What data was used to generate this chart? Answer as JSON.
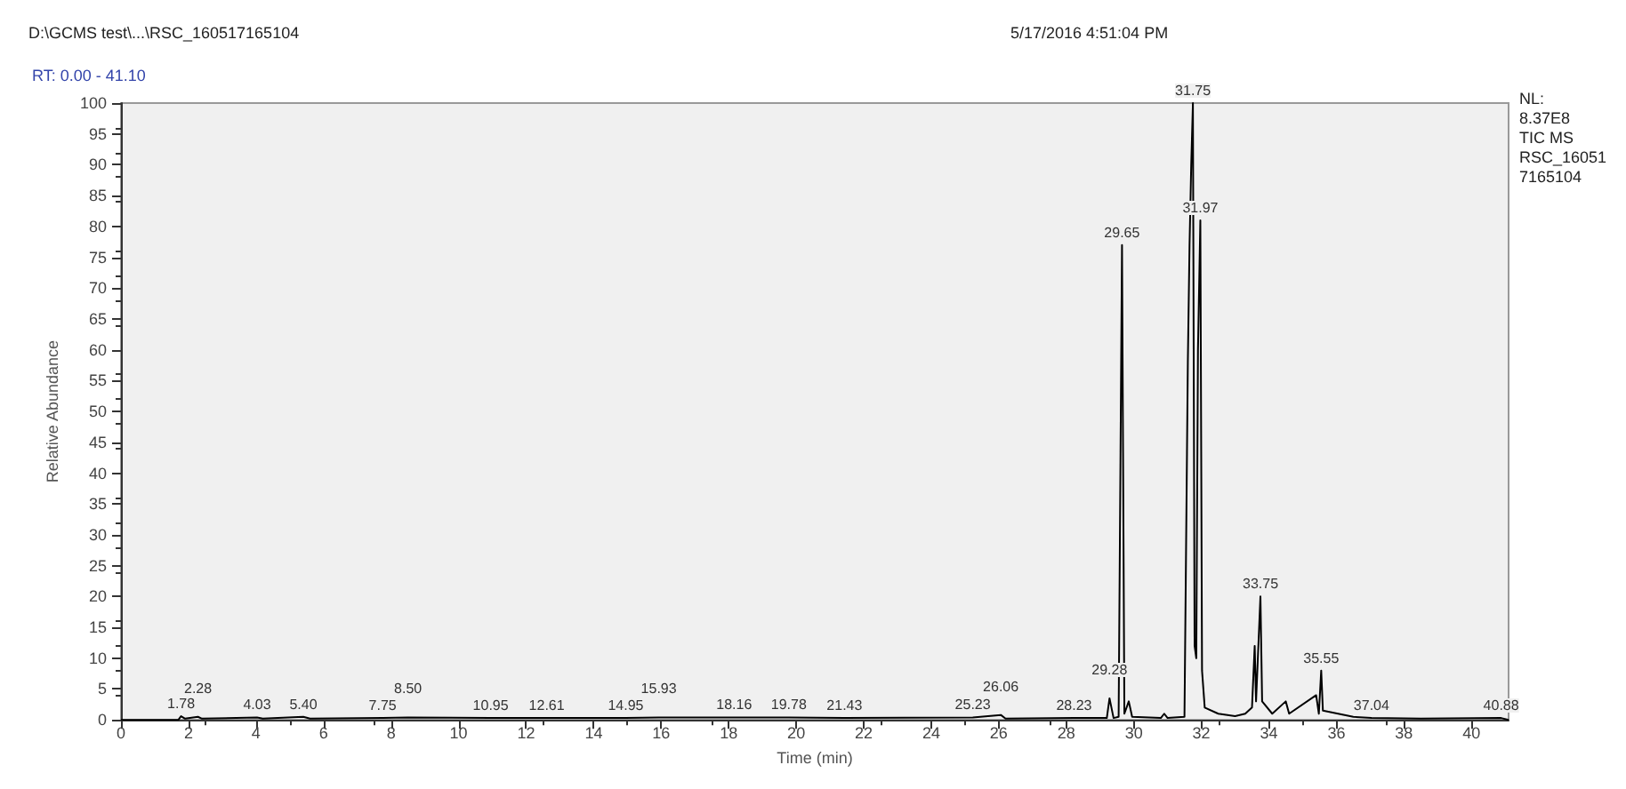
{
  "chart_data": {
    "type": "line",
    "xlabel": "Time (min)",
    "ylabel": "Relative Abundance",
    "xlim": [
      0,
      41.1
    ],
    "xticks": [
      0,
      2,
      4,
      6,
      8,
      10,
      12,
      14,
      16,
      18,
      20,
      22,
      24,
      26,
      28,
      30,
      32,
      34,
      36,
      38,
      40
    ],
    "ylim": [
      0,
      100
    ],
    "yticks": [
      0,
      5,
      10,
      15,
      20,
      25,
      30,
      35,
      40,
      45,
      50,
      55,
      60,
      65,
      70,
      75,
      80,
      85,
      90,
      95,
      100
    ],
    "grid": false,
    "marker": "none",
    "line_style": "solid",
    "series": [
      {
        "color": "#000000",
        "x": [
          0,
          1.7,
          1.78,
          1.9,
          2.28,
          2.4,
          4.03,
          4.2,
          5.4,
          5.6,
          7.75,
          8.5,
          10.95,
          12.61,
          14.95,
          15.93,
          18.16,
          19.78,
          21.43,
          25.23,
          26.06,
          26.2,
          28.23,
          29.2,
          29.28,
          29.4,
          29.55,
          29.65,
          29.72,
          29.85,
          29.95,
          30.8,
          30.9,
          31.0,
          31.5,
          31.6,
          31.65,
          31.7,
          31.75,
          31.8,
          31.85,
          31.9,
          31.97,
          32.02,
          32.1,
          32.5,
          33.0,
          33.3,
          33.5,
          33.58,
          33.62,
          33.75,
          33.8,
          34.1,
          34.5,
          34.6,
          35.4,
          35.48,
          35.55,
          35.6,
          36.5,
          37.04,
          38.5,
          40.88,
          41.1
        ],
        "values": [
          0,
          0,
          0.6,
          0.2,
          0.5,
          0.2,
          0.4,
          0.2,
          0.5,
          0.2,
          0.3,
          0.4,
          0.3,
          0.3,
          0.3,
          0.4,
          0.4,
          0.4,
          0.3,
          0.4,
          0.8,
          0.2,
          0.3,
          0.3,
          3.5,
          0.3,
          0.5,
          77,
          1,
          3,
          0.5,
          0.3,
          1,
          0.3,
          0.5,
          58,
          77,
          90,
          100,
          12,
          10,
          60,
          81,
          8,
          2,
          1,
          0.6,
          1,
          2,
          12,
          3,
          20,
          3,
          1,
          3,
          1,
          4,
          1,
          8,
          1.5,
          0.5,
          0.3,
          0.2,
          0.3,
          0
        ]
      }
    ],
    "annotations": [
      "D:\\GCMS test\\...\\RSC_160517165104",
      "5/17/2016 4:51:04 PM",
      "RT: 0.00 - 41.10",
      "NL:",
      "8.37E8",
      "TIC MS",
      "RSC_160517165104",
      {
        "text": "1.78",
        "x": 1.78,
        "y": 0.6
      },
      {
        "text": "2.28",
        "x": 2.28,
        "y": 0.5
      },
      {
        "text": "4.03",
        "x": 4.03,
        "y": 0.4
      },
      {
        "text": "5.40",
        "x": 5.4,
        "y": 0.5
      },
      {
        "text": "7.75",
        "x": 7.75,
        "y": 0.3
      },
      {
        "text": "8.50",
        "x": 8.5,
        "y": 0.4
      },
      {
        "text": "10.95",
        "x": 10.95,
        "y": 0.3
      },
      {
        "text": "12.61",
        "x": 12.61,
        "y": 0.3
      },
      {
        "text": "14.95",
        "x": 14.95,
        "y": 0.3
      },
      {
        "text": "15.93",
        "x": 15.93,
        "y": 0.4
      },
      {
        "text": "18.16",
        "x": 18.16,
        "y": 0.4
      },
      {
        "text": "19.78",
        "x": 19.78,
        "y": 0.4
      },
      {
        "text": "21.43",
        "x": 21.43,
        "y": 0.3
      },
      {
        "text": "25.23",
        "x": 25.23,
        "y": 0.4
      },
      {
        "text": "26.06",
        "x": 26.06,
        "y": 0.8
      },
      {
        "text": "28.23",
        "x": 28.23,
        "y": 0.3
      },
      {
        "text": "29.28",
        "x": 29.28,
        "y": 3.5
      },
      {
        "text": "29.65",
        "x": 29.65,
        "y": 77
      },
      {
        "text": "31.75",
        "x": 31.75,
        "y": 100
      },
      {
        "text": "31.97",
        "x": 31.97,
        "y": 81
      },
      {
        "text": "33.75",
        "x": 33.75,
        "y": 20
      },
      {
        "text": "35.55",
        "x": 35.55,
        "y": 8
      },
      {
        "text": "37.04",
        "x": 37.04,
        "y": 0.3
      },
      {
        "text": "40.88",
        "x": 40.88,
        "y": 0.3
      }
    ]
  }
}
